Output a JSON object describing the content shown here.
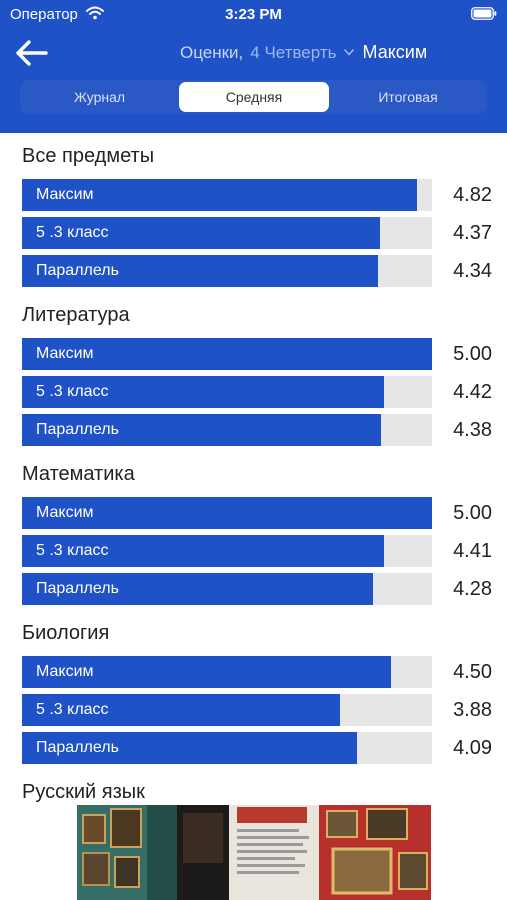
{
  "status_bar": {
    "carrier": "Оператор",
    "time": "3:23 PM",
    "wifi_icon": "wifi-icon",
    "battery_icon": "battery-icon"
  },
  "nav": {
    "back_icon": "arrow-left-icon",
    "title": "Оценки,",
    "period": "4 Четверть",
    "student": "Максим"
  },
  "tabs": [
    {
      "label": "Журнал",
      "selected": false
    },
    {
      "label": "Средняя",
      "selected": true
    },
    {
      "label": "Итоговая",
      "selected": false
    }
  ],
  "max_grade": 5,
  "colors": {
    "accent": "#1f52c6",
    "track": "#e6e6e6"
  },
  "subjects": [
    {
      "title": "Все предметы",
      "rows": [
        {
          "label": "Максим",
          "value": "4.82",
          "fraction": 0.964
        },
        {
          "label": "5 .3 класс",
          "value": "4.37",
          "fraction": 0.874
        },
        {
          "label": "Параллель",
          "value": "4.34",
          "fraction": 0.868
        }
      ]
    },
    {
      "title": "Литература",
      "rows": [
        {
          "label": "Максим",
          "value": "5.00",
          "fraction": 1.0
        },
        {
          "label": "5 .3 класс",
          "value": "4.42",
          "fraction": 0.884
        },
        {
          "label": "Параллель",
          "value": "4.38",
          "fraction": 0.876
        }
      ]
    },
    {
      "title": "Математика",
      "rows": [
        {
          "label": "Максим",
          "value": "5.00",
          "fraction": 1.0
        },
        {
          "label": "5 .3 класс",
          "value": "4.41",
          "fraction": 0.882
        },
        {
          "label": "Параллель",
          "value": "4.28",
          "fraction": 0.856
        }
      ]
    },
    {
      "title": "Биология",
      "rows": [
        {
          "label": "Максим",
          "value": "4.50",
          "fraction": 0.9
        },
        {
          "label": "5 .3 класс",
          "value": "3.88",
          "fraction": 0.776
        },
        {
          "label": "Параллель",
          "value": "4.09",
          "fraction": 0.818
        }
      ]
    },
    {
      "title": "Русский язык",
      "rows": []
    }
  ]
}
